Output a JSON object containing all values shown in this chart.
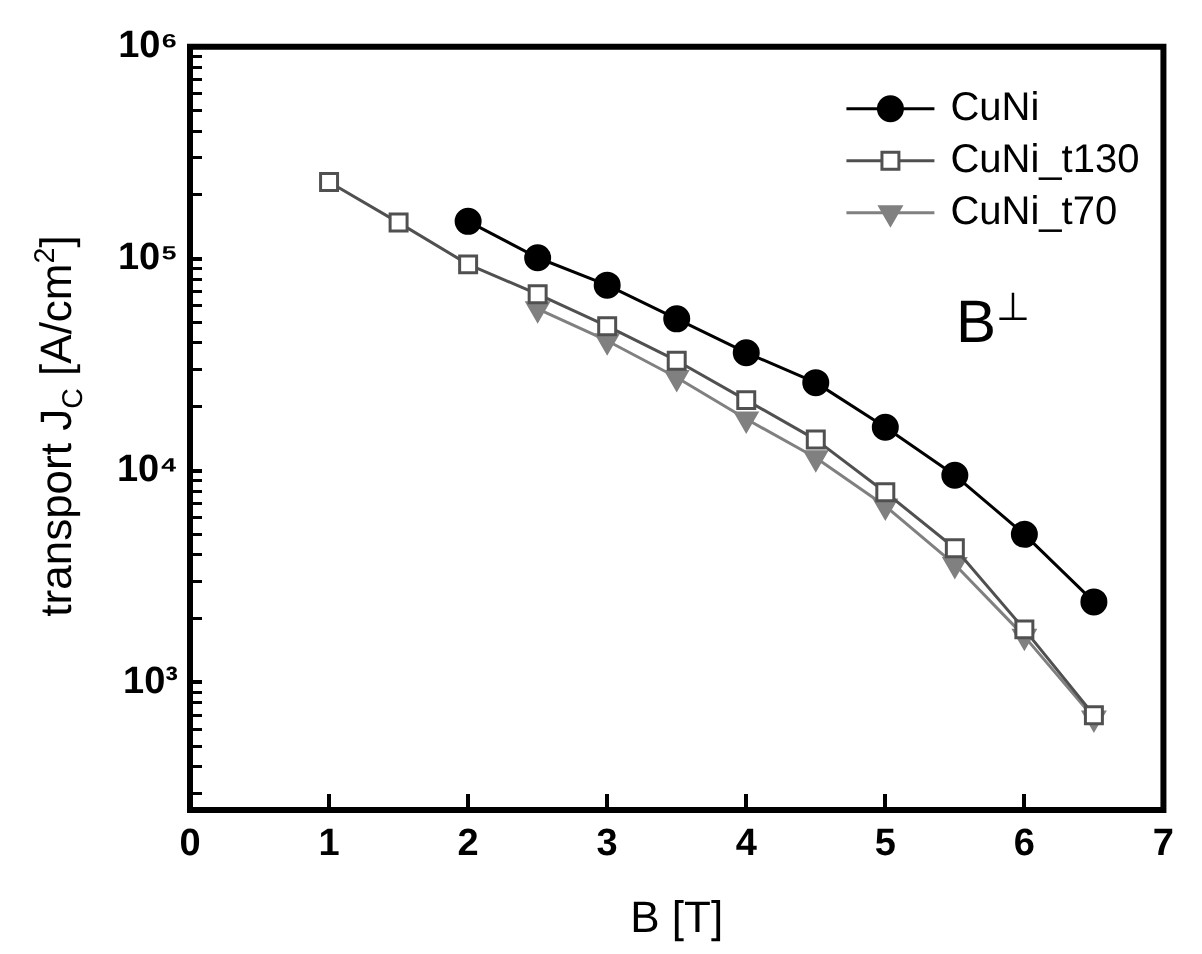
{
  "chart_data": {
    "type": "line",
    "xlabel": "B [T]",
    "ylabel": "transport J$_{C}$ [A/cm$^{2}$]",
    "annotations": [
      "B$^{⊥}$"
    ],
    "xlim": [
      0,
      7
    ],
    "xticks": [
      0,
      1,
      2,
      3,
      4,
      5,
      6,
      7
    ],
    "ylim": [
      250,
      1000000
    ],
    "yticks": [
      {
        "value": 300,
        "label": null
      },
      {
        "value": 400,
        "label": null
      },
      {
        "value": 500,
        "label": null
      },
      {
        "value": 600,
        "label": null
      },
      {
        "value": 700,
        "label": null
      },
      {
        "value": 800,
        "label": null
      },
      {
        "value": 900,
        "label": null
      },
      {
        "value": 1000,
        "label": "10³"
      },
      {
        "value": 2000,
        "label": null
      },
      {
        "value": 3000,
        "label": null
      },
      {
        "value": 4000,
        "label": null
      },
      {
        "value": 5000,
        "label": null
      },
      {
        "value": 6000,
        "label": null
      },
      {
        "value": 7000,
        "label": null
      },
      {
        "value": 8000,
        "label": null
      },
      {
        "value": 9000,
        "label": null
      },
      {
        "value": 10000,
        "label": "10⁴"
      },
      {
        "value": 20000,
        "label": null
      },
      {
        "value": 30000,
        "label": null
      },
      {
        "value": 40000,
        "label": null
      },
      {
        "value": 50000,
        "label": null
      },
      {
        "value": 60000,
        "label": null
      },
      {
        "value": 70000,
        "label": null
      },
      {
        "value": 80000,
        "label": null
      },
      {
        "value": 90000,
        "label": null
      },
      {
        "value": 100000,
        "label": "10⁵"
      },
      {
        "value": 200000,
        "label": null
      },
      {
        "value": 300000,
        "label": null
      },
      {
        "value": 400000,
        "label": null
      },
      {
        "value": 500000,
        "label": null
      },
      {
        "value": 600000,
        "label": null
      },
      {
        "value": 700000,
        "label": null
      },
      {
        "value": 800000,
        "label": null
      },
      {
        "value": 900000,
        "label": null
      },
      {
        "value": 1000000,
        "label": "10⁶"
      }
    ],
    "log": "y",
    "grid": false,
    "legend": "top right",
    "line_style": "solid",
    "series": [
      {
        "name": "CuNi",
        "color": "#000000",
        "marker": "circle",
        "x": [
          2,
          2.5,
          3,
          3.5,
          4,
          4.5,
          5,
          5.5,
          6,
          6.5
        ],
        "values": [
          150000,
          101000,
          75000,
          52000,
          36000,
          26000,
          16000,
          9500,
          5000,
          2400
        ]
      },
      {
        "name": "CuNi_t130",
        "color": "#505050",
        "marker": "square",
        "x": [
          1,
          1.5,
          2,
          2.5,
          3,
          3.5,
          4,
          4.5,
          5,
          5.5,
          6,
          6.5
        ],
        "values": [
          230000,
          148000,
          94000,
          68000,
          48000,
          33000,
          21500,
          14000,
          7900,
          4300,
          1780,
          700
        ]
      },
      {
        "name": "CuNi_t70",
        "color": "#808080",
        "marker": "triangle",
        "x": [
          2.5,
          3,
          3.5,
          4,
          4.5,
          5,
          5.5,
          6,
          6.5
        ],
        "values": [
          58000,
          41000,
          27500,
          17500,
          11500,
          6800,
          3600,
          1650,
          680
        ]
      }
    ]
  }
}
